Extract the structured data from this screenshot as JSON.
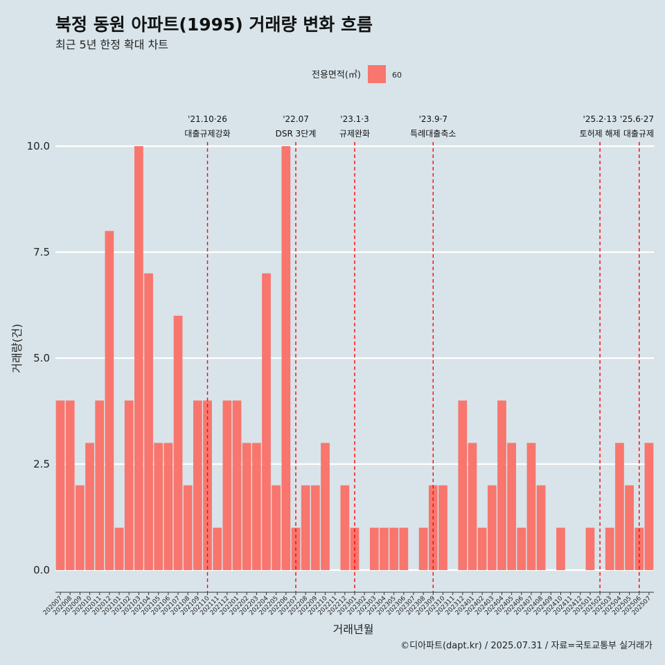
{
  "title": "북정 동원 아파트(1995) 거래량 변화 흐름",
  "subtitle": "최근 5년 한정 확대 차트",
  "caption": "©디아파트(dapt.kr) / 2025.07.31 / 자료=국토교통부 실거래가",
  "colors": {
    "background": "#d8e4ea",
    "bar": "#f8766d",
    "grid": "#ffffff",
    "event_line": "#ff0000"
  },
  "chart_data": {
    "type": "bar",
    "xlabel": "거래년월",
    "ylabel": "거래량(건)",
    "ylim": [
      0,
      10
    ],
    "yticks": [
      "0.0",
      "2.5",
      "5.0",
      "7.5",
      "10.0"
    ],
    "legend": {
      "title": "전용면적(㎡)",
      "position": "top",
      "entries": [
        "60"
      ]
    },
    "categories": [
      "202007",
      "202008",
      "202009",
      "202010",
      "202011",
      "202012",
      "202101",
      "202102",
      "202103",
      "202104",
      "202105",
      "202106",
      "202107",
      "202108",
      "202109",
      "202110",
      "202111",
      "202112",
      "202201",
      "202202",
      "202203",
      "202204",
      "202205",
      "202206",
      "202207",
      "202208",
      "202209",
      "202210",
      "202211",
      "202212",
      "202301",
      "202302",
      "202303",
      "202304",
      "202305",
      "202306",
      "202307",
      "202308",
      "202309",
      "202310",
      "202311",
      "202312",
      "202401",
      "202402",
      "202403",
      "202404",
      "202405",
      "202406",
      "202407",
      "202408",
      "202409",
      "202410",
      "202411",
      "202412",
      "202501",
      "202502",
      "202503",
      "202504",
      "202505",
      "202506",
      "202507"
    ],
    "series": [
      {
        "name": "60",
        "values": [
          4,
          4,
          2,
          3,
          4,
          8,
          1,
          4,
          10,
          7,
          3,
          3,
          6,
          2,
          4,
          4,
          1,
          4,
          4,
          3,
          3,
          7,
          2,
          10,
          1,
          2,
          2,
          3,
          0,
          2,
          1,
          0,
          1,
          1,
          1,
          1,
          0,
          1,
          2,
          2,
          0,
          4,
          3,
          1,
          2,
          4,
          3,
          1,
          3,
          2,
          0,
          1,
          0,
          0,
          1,
          0,
          1,
          3,
          2,
          1,
          3
        ]
      }
    ],
    "annotations": [
      {
        "date": "'21.10·26",
        "label": "대출규제강화",
        "x": "202110"
      },
      {
        "date": "'22.07",
        "label": "DSR 3단계",
        "x": "202207"
      },
      {
        "date": "'23.1·3",
        "label": "규제완화",
        "x": "202301"
      },
      {
        "date": "'23.9·7",
        "label": "특례대출축소",
        "x": "202309"
      },
      {
        "date": "'25.2·13",
        "label": "토허제 해제",
        "x": "202502"
      },
      {
        "date": "'25.6·27",
        "label": "대출규제",
        "x": "202506"
      }
    ]
  }
}
